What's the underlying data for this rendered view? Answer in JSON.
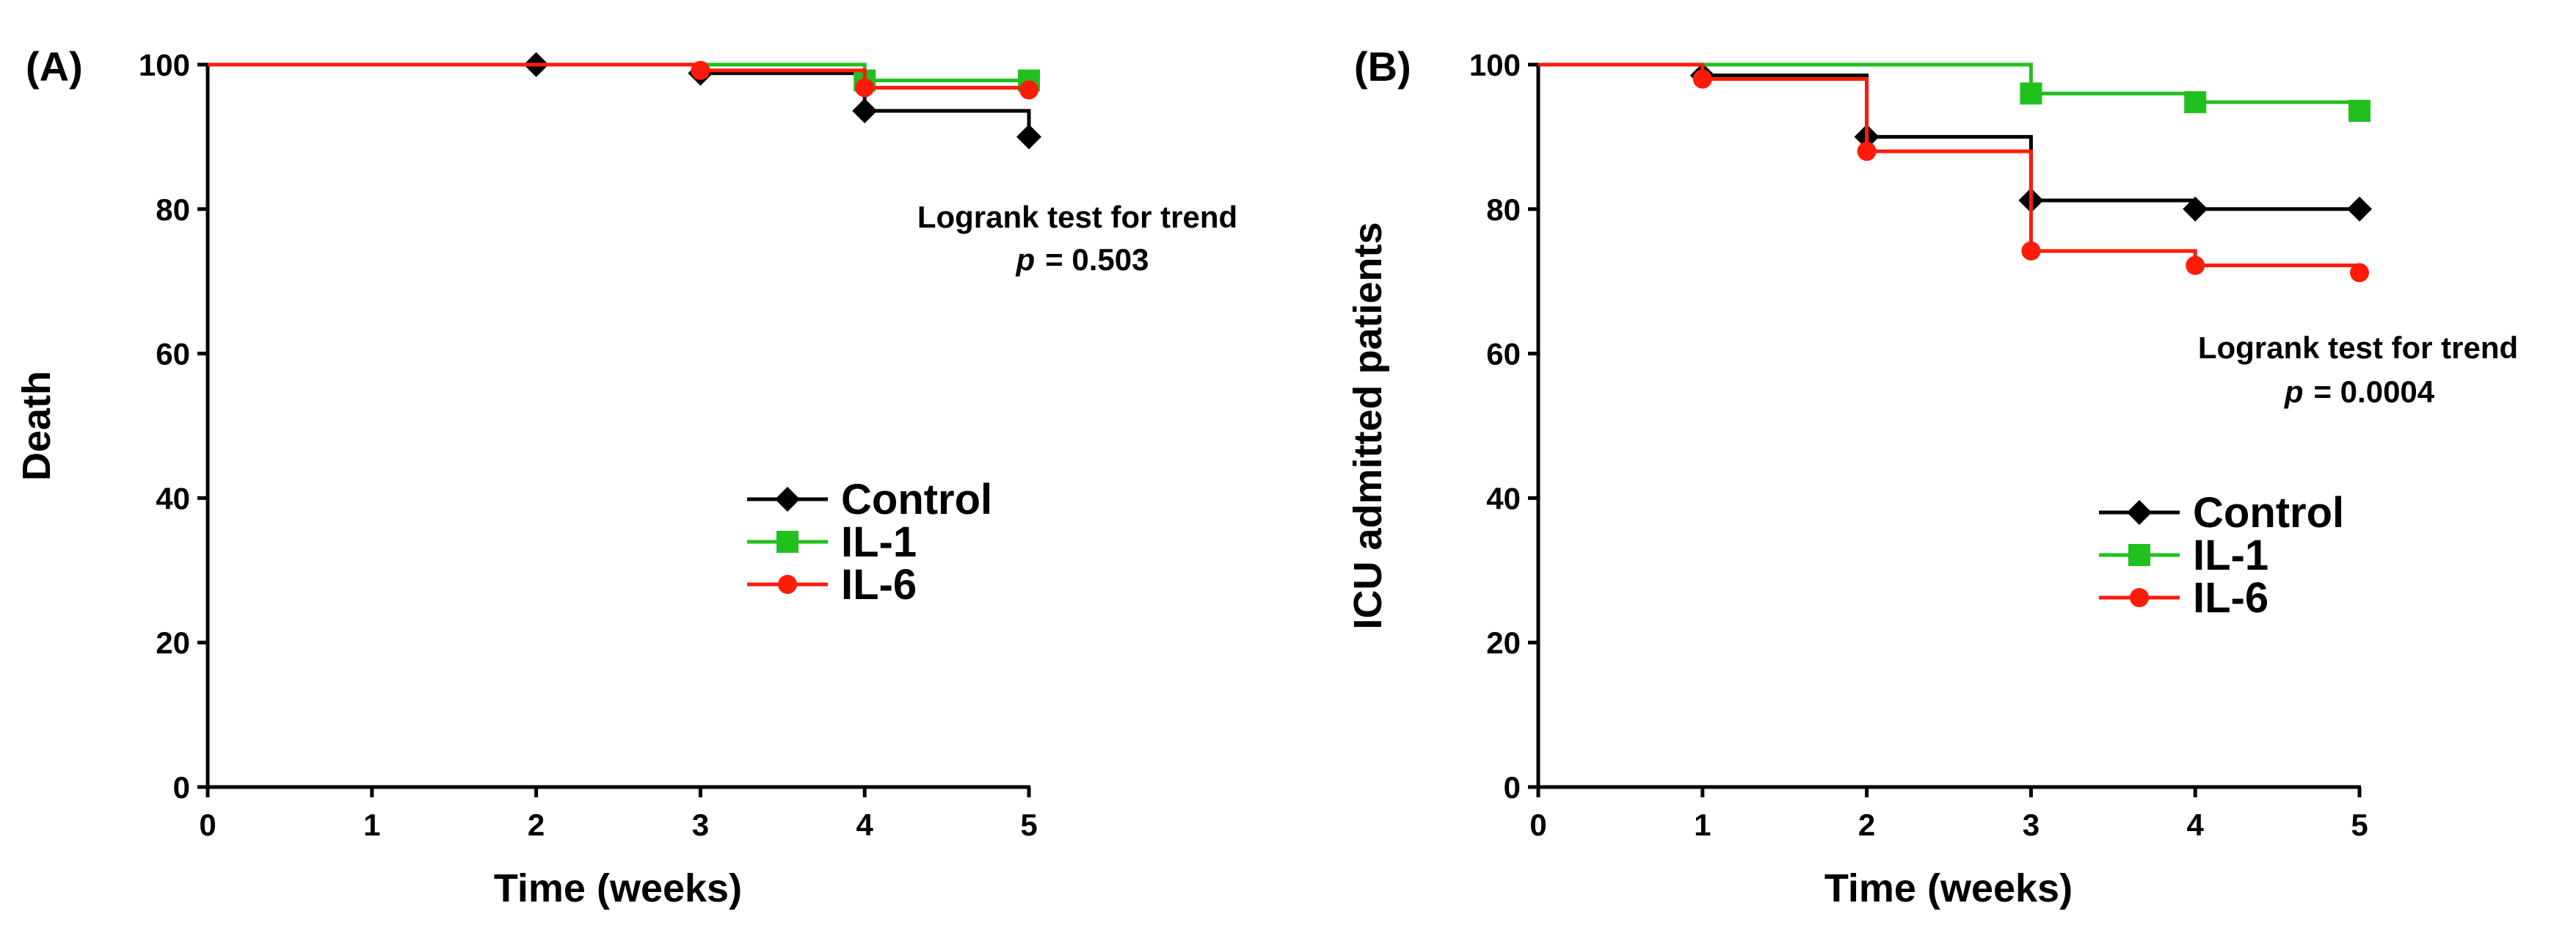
{
  "chart_data": [
    {
      "type": "line",
      "subtype": "kaplan-meier-step",
      "panel_label": "(A)",
      "xlabel": "Time (weeks)",
      "ylabel": "Death",
      "xlim": [
        0,
        5
      ],
      "ylim": [
        0,
        100
      ],
      "x_ticks": [
        "0",
        "1",
        "2",
        "3",
        "4",
        "5"
      ],
      "y_ticks": [
        "0",
        "20",
        "40",
        "60",
        "80",
        "100"
      ],
      "annotation": {
        "line1": "Logrank test for trend",
        "p_label": "p",
        "p_value": "= 0.503"
      },
      "legend": [
        "Control",
        "IL-1",
        "IL-6"
      ],
      "series": [
        {
          "name": "Control",
          "color": "#000000",
          "marker": "diamond",
          "steps": [
            [
              0,
              100
            ],
            [
              2,
              100
            ],
            [
              3,
              98.8
            ],
            [
              4,
              93.6
            ],
            [
              5,
              90
            ]
          ],
          "markers": [
            [
              2,
              100
            ],
            [
              3,
              98.8
            ],
            [
              4,
              93.6
            ],
            [
              5,
              90
            ]
          ]
        },
        {
          "name": "IL-1",
          "color": "#22c01e",
          "marker": "square",
          "steps": [
            [
              0,
              100
            ],
            [
              4,
              97.8
            ],
            [
              5,
              97.8
            ]
          ],
          "markers": [
            [
              4,
              97.8
            ],
            [
              5,
              97.8
            ]
          ]
        },
        {
          "name": "IL-6",
          "color": "#ff1a0a",
          "marker": "circle",
          "steps": [
            [
              0,
              100
            ],
            [
              3,
              99.2
            ],
            [
              4,
              96.8
            ],
            [
              5,
              96.5
            ]
          ],
          "markers": [
            [
              3,
              99.2
            ],
            [
              4,
              96.8
            ],
            [
              5,
              96.5
            ]
          ]
        }
      ]
    },
    {
      "type": "line",
      "subtype": "kaplan-meier-step",
      "panel_label": "(B)",
      "xlabel": "Time (weeks)",
      "ylabel": "ICU admitted patients",
      "xlim": [
        0,
        5
      ],
      "ylim": [
        0,
        100
      ],
      "x_ticks": [
        "0",
        "1",
        "2",
        "3",
        "4",
        "5"
      ],
      "y_ticks": [
        "0",
        "20",
        "40",
        "60",
        "80",
        "100"
      ],
      "annotation": {
        "line1": "Logrank test for trend",
        "p_label": "p",
        "p_value": "= 0.0004"
      },
      "legend": [
        "Control",
        "IL-1",
        "IL-6"
      ],
      "series": [
        {
          "name": "Control",
          "color": "#000000",
          "marker": "diamond",
          "steps": [
            [
              0,
              100
            ],
            [
              1,
              98.5
            ],
            [
              2,
              90
            ],
            [
              3,
              81.2
            ],
            [
              4,
              80
            ],
            [
              5,
              80
            ]
          ],
          "markers": [
            [
              1,
              98.5
            ],
            [
              2,
              90
            ],
            [
              3,
              81.2
            ],
            [
              4,
              80
            ],
            [
              5,
              80
            ]
          ]
        },
        {
          "name": "IL-1",
          "color": "#22c01e",
          "marker": "square",
          "steps": [
            [
              0,
              100
            ],
            [
              3,
              96
            ],
            [
              4,
              94.8
            ],
            [
              5,
              93.6
            ]
          ],
          "markers": [
            [
              3,
              96
            ],
            [
              4,
              94.8
            ],
            [
              5,
              93.6
            ]
          ]
        },
        {
          "name": "IL-6",
          "color": "#ff1a0a",
          "marker": "circle",
          "steps": [
            [
              0,
              100
            ],
            [
              1,
              98
            ],
            [
              2,
              88
            ],
            [
              3,
              74.2
            ],
            [
              4,
              72.2
            ],
            [
              5,
              71.2
            ]
          ],
          "markers": [
            [
              1,
              98
            ],
            [
              2,
              88
            ],
            [
              3,
              74.2
            ],
            [
              4,
              72.2
            ],
            [
              5,
              71.2
            ]
          ]
        }
      ]
    }
  ]
}
